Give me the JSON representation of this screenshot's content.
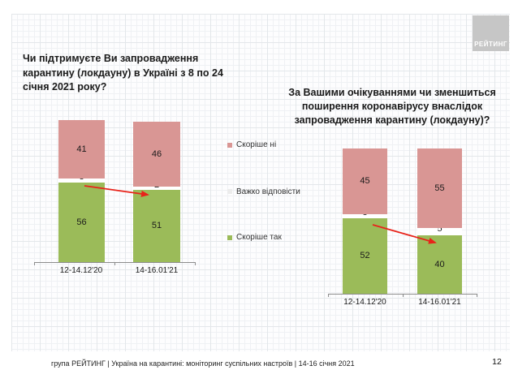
{
  "slide": {
    "page_number": "12",
    "footer_text": "група РЕЙТИНГ | Україна на карантині: моніторинг суспільних настроїв | 14-16 січня 2021"
  },
  "logo": {
    "text": "РЕЙТИНГ",
    "background_color": "#c6c6c6",
    "text_color": "#ffffff"
  },
  "legend": {
    "position": "center-between-charts",
    "items": [
      {
        "label": "Скоріше ні",
        "color": "#D99694"
      },
      {
        "label": "Важко відповісти",
        "color": "#ECECEC"
      },
      {
        "label": "Скоріше так",
        "color": "#9BBB59"
      }
    ]
  },
  "colors": {
    "green": "#9BBB59",
    "pink": "#D99694",
    "neutral": "#FFFFFF",
    "arrow_red": "#E8231A",
    "axis_gray": "#8c8c8c"
  },
  "chart_data": [
    {
      "type": "bar",
      "stacked": true,
      "title": "Чи підтримуєте Ви запровадження карантину (локдауну)  в Україні з 8 по 24 січня 2021 року?",
      "categories": [
        "12-14.12'20",
        "14-16.01'21"
      ],
      "series": [
        {
          "name": "Скоріше так",
          "color": "#9BBB59",
          "values": [
            56,
            51
          ]
        },
        {
          "name": "Важко відповісти",
          "color": "#FFFFFF",
          "values": [
            3,
            2
          ]
        },
        {
          "name": "Скоріше ні",
          "color": "#D99694",
          "values": [
            41,
            46
          ]
        }
      ],
      "ylim": [
        0,
        100
      ],
      "value_labels": true,
      "legend_position": "right-of-chart",
      "annotation": "red arrow showing decline of 'Скоріше так' from 56 to 51 between waves"
    },
    {
      "type": "bar",
      "stacked": true,
      "title": "За Вашими очікуваннями чи зменшиться поширення коронавірусу внаслідок запровадження карантину (локдауну)?",
      "categories": [
        "12-14.12'20",
        "14-16.01'21"
      ],
      "series": [
        {
          "name": "Скоріше так",
          "color": "#9BBB59",
          "values": [
            52,
            40
          ]
        },
        {
          "name": "Важко відповісти",
          "color": "#FFFFFF",
          "values": [
            3,
            5
          ]
        },
        {
          "name": "Скоріше ні",
          "color": "#D99694",
          "values": [
            45,
            55
          ]
        }
      ],
      "ylim": [
        0,
        100
      ],
      "value_labels": true,
      "legend_position": "left-of-chart",
      "annotation": "red arrow showing decline of 'Скоріше так' from 52 to 40 between waves"
    }
  ]
}
